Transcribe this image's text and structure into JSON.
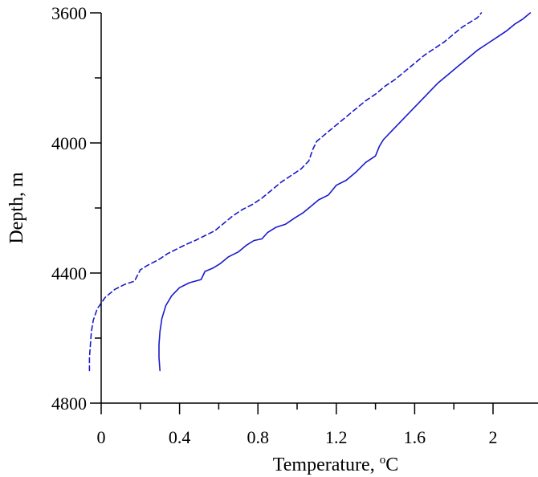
{
  "chart_data": {
    "type": "line",
    "title": "",
    "xlabel": "Temperature, ",
    "xlabel_superscript": "o",
    "xlabel_unit": "C",
    "ylabel": "Depth, m",
    "xlim": [
      -0.05,
      2.2
    ],
    "ylim": [
      3600,
      4800
    ],
    "y_inverted": true,
    "grid": false,
    "legend": "none",
    "line_color": "#1a1acc",
    "x_major_ticks": [
      0,
      0.4,
      0.8,
      1.2,
      1.6,
      2
    ],
    "x_tick_labels": [
      "0",
      "0.4",
      "0.8",
      "1.2",
      "1.6",
      "2"
    ],
    "x_minor_ticks": [
      0.2,
      0.6,
      1.0,
      1.4,
      1.8
    ],
    "y_major_ticks": [
      3600,
      4000,
      4400,
      4800
    ],
    "y_tick_labels": [
      "3600",
      "4000",
      "4400",
      "4800"
    ],
    "y_minor_ticks": [
      3800,
      4200,
      4600
    ],
    "series": [
      {
        "style": "solid",
        "points": [
          [
            0.3,
            4700
          ],
          [
            0.295,
            4660
          ],
          [
            0.295,
            4620
          ],
          [
            0.3,
            4580
          ],
          [
            0.31,
            4540
          ],
          [
            0.33,
            4500
          ],
          [
            0.36,
            4470
          ],
          [
            0.4,
            4445
          ],
          [
            0.45,
            4430
          ],
          [
            0.51,
            4420
          ],
          [
            0.53,
            4395
          ],
          [
            0.57,
            4385
          ],
          [
            0.61,
            4370
          ],
          [
            0.65,
            4350
          ],
          [
            0.7,
            4335
          ],
          [
            0.74,
            4315
          ],
          [
            0.78,
            4300
          ],
          [
            0.82,
            4295
          ],
          [
            0.85,
            4275
          ],
          [
            0.89,
            4260
          ],
          [
            0.94,
            4250
          ],
          [
            0.99,
            4230
          ],
          [
            1.03,
            4215
          ],
          [
            1.07,
            4195
          ],
          [
            1.11,
            4175
          ],
          [
            1.16,
            4160
          ],
          [
            1.2,
            4130
          ],
          [
            1.25,
            4115
          ],
          [
            1.3,
            4090
          ],
          [
            1.35,
            4060
          ],
          [
            1.4,
            4040
          ],
          [
            1.42,
            4010
          ],
          [
            1.44,
            3990
          ],
          [
            1.48,
            3965
          ],
          [
            1.52,
            3940
          ],
          [
            1.56,
            3915
          ],
          [
            1.6,
            3890
          ],
          [
            1.64,
            3865
          ],
          [
            1.68,
            3840
          ],
          [
            1.72,
            3815
          ],
          [
            1.77,
            3790
          ],
          [
            1.82,
            3765
          ],
          [
            1.87,
            3740
          ],
          [
            1.92,
            3715
          ],
          [
            1.97,
            3695
          ],
          [
            2.02,
            3675
          ],
          [
            2.07,
            3655
          ],
          [
            2.11,
            3635
          ],
          [
            2.15,
            3620
          ],
          [
            2.19,
            3600
          ]
        ]
      },
      {
        "style": "dashed",
        "points": [
          [
            -0.06,
            4700
          ],
          [
            -0.06,
            4660
          ],
          [
            -0.055,
            4620
          ],
          [
            -0.05,
            4580
          ],
          [
            -0.04,
            4545
          ],
          [
            -0.02,
            4510
          ],
          [
            0.02,
            4475
          ],
          [
            0.07,
            4450
          ],
          [
            0.12,
            4435
          ],
          [
            0.17,
            4425
          ],
          [
            0.2,
            4390
          ],
          [
            0.24,
            4375
          ],
          [
            0.29,
            4360
          ],
          [
            0.34,
            4340
          ],
          [
            0.39,
            4325
          ],
          [
            0.44,
            4310
          ],
          [
            0.48,
            4300
          ],
          [
            0.53,
            4285
          ],
          [
            0.58,
            4270
          ],
          [
            0.62,
            4250
          ],
          [
            0.67,
            4225
          ],
          [
            0.72,
            4205
          ],
          [
            0.77,
            4190
          ],
          [
            0.82,
            4170
          ],
          [
            0.87,
            4145
          ],
          [
            0.92,
            4120
          ],
          [
            0.97,
            4100
          ],
          [
            1.02,
            4080
          ],
          [
            1.06,
            4055
          ],
          [
            1.08,
            4020
          ],
          [
            1.1,
            3995
          ],
          [
            1.15,
            3970
          ],
          [
            1.2,
            3945
          ],
          [
            1.25,
            3920
          ],
          [
            1.3,
            3895
          ],
          [
            1.35,
            3870
          ],
          [
            1.4,
            3850
          ],
          [
            1.45,
            3825
          ],
          [
            1.5,
            3805
          ],
          [
            1.55,
            3780
          ],
          [
            1.6,
            3755
          ],
          [
            1.65,
            3730
          ],
          [
            1.7,
            3710
          ],
          [
            1.75,
            3690
          ],
          [
            1.8,
            3665
          ],
          [
            1.84,
            3645
          ],
          [
            1.88,
            3630
          ],
          [
            1.92,
            3615
          ],
          [
            1.94,
            3600
          ]
        ]
      }
    ]
  }
}
